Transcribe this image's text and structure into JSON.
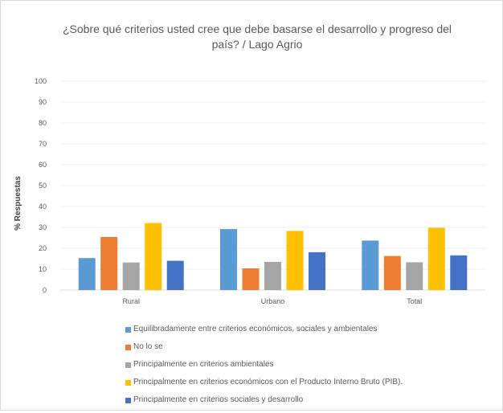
{
  "chart_data": {
    "type": "bar",
    "title_lines": [
      "¿Sobre qué criterios usted cree que debe basarse el desarrollo y progreso del",
      "país? / Lago Agrio"
    ],
    "ylabel": "% Respuestas",
    "xlabel": "",
    "ylim": [
      0,
      100
    ],
    "yticks": [
      0,
      10,
      20,
      30,
      40,
      50,
      60,
      70,
      80,
      90,
      100
    ],
    "categories": [
      "Rural",
      "Urbano",
      "Total"
    ],
    "grid": true,
    "legend_position": "bottom",
    "series": [
      {
        "name": "Equilibradamente entre criterios económicos, sociales y ambientales",
        "color": "#5b9bd5",
        "values": [
          15.3,
          29.2,
          23.7
        ]
      },
      {
        "name": "No lo se",
        "color": "#ed7d31",
        "values": [
          25.4,
          10.4,
          16.3
        ]
      },
      {
        "name": "Principalmente en criterios ambientales",
        "color": "#a5a5a5",
        "values": [
          13.2,
          13.5,
          13.3
        ]
      },
      {
        "name": "Principalmente en criterios económicos con el Producto Interno Bruto (PIB).",
        "color": "#ffc000",
        "values": [
          32.1,
          28.3,
          29.8
        ]
      },
      {
        "name": "Principalmente en criterios sociales y desarrollo",
        "color": "#4472c4",
        "values": [
          14.0,
          18.1,
          16.6
        ]
      }
    ]
  }
}
